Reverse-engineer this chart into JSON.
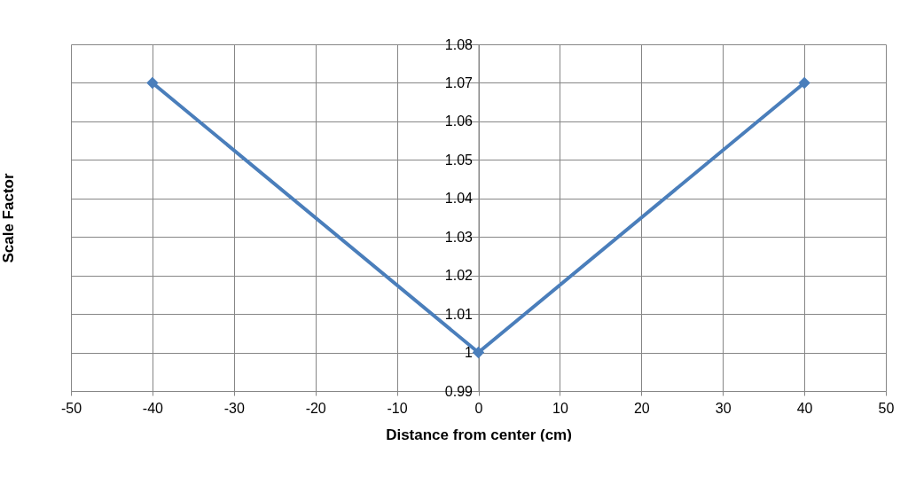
{
  "chart_data": {
    "type": "line",
    "xlabel": "Distance from center (cm)",
    "ylabel": "Scale Factor",
    "x": [
      -40,
      0,
      40
    ],
    "series": [
      {
        "color": "#4a7ebb",
        "values": [
          1.07,
          1,
          1.07
        ]
      }
    ],
    "xlim": [
      -50,
      50
    ],
    "xticks": [
      -50,
      -40,
      -30,
      -20,
      -10,
      0,
      10,
      20,
      30,
      40,
      50
    ],
    "ylim": [
      0.99,
      1.08
    ],
    "yticks": [
      0.99,
      1,
      1.01,
      1.02,
      1.03,
      1.04,
      1.05,
      1.06,
      1.07,
      1.08
    ],
    "grid": true,
    "marker": "diamond",
    "line_style": "solid"
  }
}
